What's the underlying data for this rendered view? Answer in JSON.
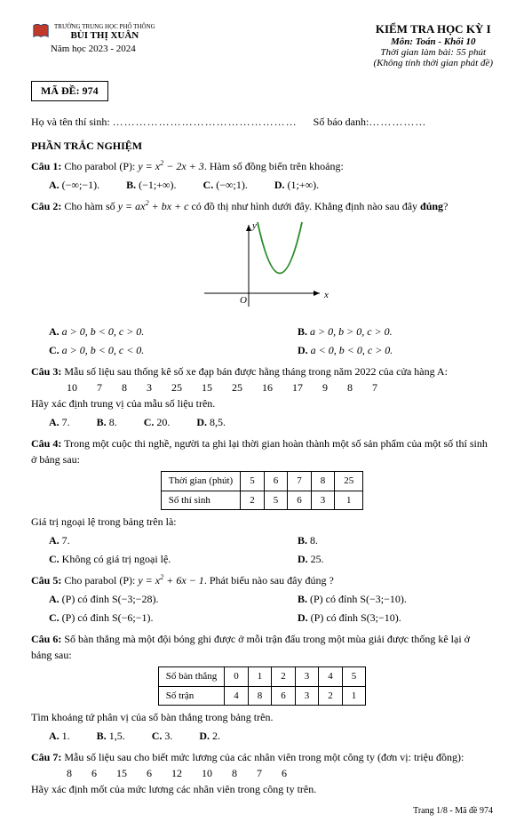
{
  "header": {
    "school_sub": "TRƯỜNG TRUNG HỌC PHỔ THÔNG",
    "school": "BÙI THỊ XUÂN",
    "year": "Năm học 2023 - 2024",
    "exam_title": "KIỂM TRA HỌC KỲ I",
    "subject": "Môn: Toán - Khối 10",
    "time": "Thời gian làm bài: 55 phút",
    "note": "(Không tính thời gian phát đề)",
    "code": "MÃ ĐỀ: 974",
    "name_label": "Họ và tên thí sinh: ",
    "sbd_label": "Số báo danh:"
  },
  "section": "PHẦN TRẮC NGHIỆM",
  "q1": {
    "label": "Câu 1:",
    "text_a": " Cho parabol (P): ",
    "formula": "y = x² − 2x + 3",
    "text_b": ". Hàm số đồng biến trên khoảng:",
    "A": "(−∞;−1).",
    "B": "(−1;+∞).",
    "C": "(−∞;1).",
    "D": "(1;+∞)."
  },
  "q2": {
    "label": "Câu 2:",
    "text_a": " Cho hàm số ",
    "formula": "y = ax² + bx + c",
    "text_b": " có đồ thị như hình dưới đây. Khẳng định nào sau đây ",
    "bold": "đúng",
    "text_c": "?",
    "graph": {
      "curve_color": "#2a8a2a",
      "axis_color": "#000000",
      "xlabel": "x",
      "ylabel": "y",
      "origin": "O"
    },
    "A": "a > 0,  b < 0,  c > 0.",
    "B": "a > 0,  b > 0,  c > 0.",
    "C": "a > 0,  b < 0,  c < 0.",
    "D": "a < 0,  b < 0,  c > 0."
  },
  "q3": {
    "label": "Câu 3:",
    "text": " Mẫu số liệu sau thống kê số xe đạp bán được hằng tháng trong năm 2022 của cửa hàng A:",
    "nums": [
      "10",
      "7",
      "8",
      "3",
      "25",
      "15",
      "25",
      "16",
      "17",
      "9",
      "8",
      "7"
    ],
    "text2": "Hãy xác định trung vị của mẫu số liệu trên.",
    "A": "7.",
    "B": "8.",
    "C": "20.",
    "D": "8,5."
  },
  "q4": {
    "label": "Câu 4:",
    "text": " Trong một cuộc thi nghề, người ta ghi lại thời gian hoàn thành một số sản phẩm của một số thí sinh ở bảng sau:",
    "table": {
      "row1_label": "Thời gian (phút)",
      "row2_label": "Số thí sinh",
      "cols": [
        "5",
        "6",
        "7",
        "8",
        "25"
      ],
      "vals": [
        "2",
        "5",
        "6",
        "3",
        "1"
      ]
    },
    "text2": "Giá trị ngoại lệ trong bảng trên là:",
    "A": "7.",
    "B": "8.",
    "C": "Không có giá trị ngoại lệ.",
    "D": "25."
  },
  "q5": {
    "label": "Câu 5:",
    "text_a": " Cho parabol (P): ",
    "formula": "y = x² + 6x − 1",
    "text_b": ". Phát biểu nào sau đây đúng ?",
    "A": "(P) có đỉnh S(−3;−28).",
    "B": "(P) có đỉnh S(−3;−10).",
    "C": "(P) có đỉnh S(−6;−1).",
    "D": "(P) có đỉnh S(3;−10)."
  },
  "q6": {
    "label": "Câu 6:",
    "text": " Số bàn thắng mà một đội bóng ghi được ở mỗi trận đấu trong một mùa giải được thống kê lại ở bảng sau:",
    "table": {
      "row1_label": "Số bàn thắng",
      "row2_label": "Số trận",
      "cols": [
        "0",
        "1",
        "2",
        "3",
        "4",
        "5"
      ],
      "vals": [
        "4",
        "8",
        "6",
        "3",
        "2",
        "1"
      ]
    },
    "text2": "Tìm khoảng tứ phân vị của số bàn thắng trong bảng trên.",
    "A": "1.",
    "B": "1,5.",
    "C": "3.",
    "D": "2."
  },
  "q7": {
    "label": "Câu 7:",
    "text": " Mẫu số liệu sau cho biết mức lương của các nhân viên trong một công ty (đơn vị: triệu đồng):",
    "nums": [
      "8",
      "6",
      "15",
      "6",
      "12",
      "10",
      "8",
      "7",
      "6"
    ],
    "text2": "Hãy xác định mốt của mức lương các nhân viên trong công ty trên."
  },
  "footer": "Trang 1/8 - Mã đề 974"
}
